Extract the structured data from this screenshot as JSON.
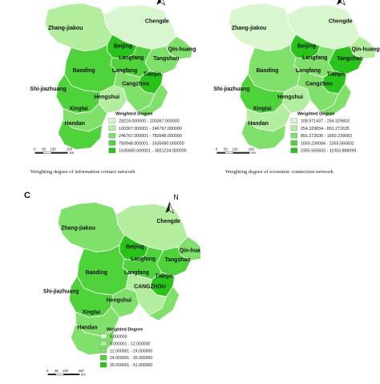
{
  "panels": [
    {
      "id": "a",
      "letter": "",
      "caption": "Weighting degree of information contact network",
      "city_labels": {
        "chengde": "Chengde",
        "zhangjiakou": "Zhang-jiakou",
        "beijing": "Beijing",
        "qinhuangdao": "Qin-huangdao",
        "langfang_n": "Langfang",
        "tangshan": "Tangshan",
        "baoding": "Baoding",
        "langfang_s": "Langfang",
        "tianjin": "Tianjin",
        "cangzhou": "Cangzhou",
        "shijiazhuang": "Shi-jiazhuang",
        "hengshui": "Hengshui",
        "xingtai": "Xingtai",
        "handan": "Handan"
      },
      "legend": {
        "title": "Weighted Degree",
        "entries": [
          "28224.000000 - 100367.000000",
          "100367.000001 - 246767.000000",
          "246767.000001 - 783948.000000",
          "783948.000001 - 1635680.000000",
          "1635680.000001 - 3651234.000000"
        ],
        "colors": [
          "#d9f7cf",
          "#b3ee9f",
          "#7fe06a",
          "#4fd33a",
          "#29c41a"
        ]
      },
      "scale": {
        "ticks": [
          "0",
          "65",
          "130",
          "260"
        ],
        "unit": "km"
      },
      "city_class": {
        "chengde": 0,
        "zhangjiakou": 1,
        "beijing": 4,
        "qinhuangdao": 2,
        "langfang": 3,
        "tangshan": 2,
        "baoding": 3,
        "tianjin": 4,
        "cangzhou": 2,
        "shijiazhuang": 3,
        "hengshui": 1,
        "xingtai": 2,
        "handan": 3,
        "east_strip": 2
      }
    },
    {
      "id": "b",
      "letter": "",
      "caption": "Weighting degree of economic connection network",
      "city_labels": {
        "chengde": "Chengde",
        "zhangjiakou": "Zhang-jiakou",
        "beijing": "Beijing",
        "qinhuangdao": "Qin-huangdan",
        "langfang_n": "Langfang",
        "tangshan": "Tangshan",
        "baoding": "Baoding",
        "langfang_s": "Langfang",
        "tianjin": "Tianjin",
        "cangzhou": "Cangzhou",
        "shijiazhuang": "Shi-jiazhuang",
        "hengshui": "Hengshui",
        "xingtai": "Xingtai",
        "handan": "Handan"
      },
      "legend": {
        "title": "Weighted Degree",
        "entries": [
          "108.971437 - 254.329833",
          "254.329834 - 891.272635",
          "891.272636 - 1650.239083",
          "1650.239084 - 2355.565832",
          "2355.565833 - 11003.888099"
        ],
        "colors": [
          "#d9f7cf",
          "#b3ee9f",
          "#7fe06a",
          "#4fd33a",
          "#29c41a"
        ]
      },
      "scale": {
        "ticks": [
          "0",
          "65",
          "130",
          "260"
        ],
        "unit": "km"
      },
      "city_class": {
        "chengde": 0,
        "zhangjiakou": 0,
        "beijing": 4,
        "qinhuangdao": 1,
        "langfang": 2,
        "tangshan": 4,
        "baoding": 2,
        "tianjin": 4,
        "cangzhou": 2,
        "shijiazhuang": 3,
        "hengshui": 1,
        "xingtai": 1,
        "handan": 2,
        "east_strip": 2
      }
    },
    {
      "id": "c",
      "letter": "C",
      "caption": "",
      "city_labels": {
        "chengde": "Chengde",
        "zhangjiakou": "Zhang-jiakou",
        "beijing": "Beijing",
        "qinhuangdao": "Qin-huangdao",
        "langfang_n": "Langfang",
        "tangshan": "Tangshan",
        "baoding": "Baoding",
        "langfang_s": "Langfang",
        "tianjin": "Tianjin",
        "cangzhou": "CANGZHOU",
        "shijiazhuang": "Shi-jiazhuang",
        "hengshui": "Hengshui",
        "xingtai": "Xingtai",
        "handan": "Handan"
      },
      "legend": {
        "title": "Weighted Degree",
        "entries": [
          "6.000000",
          "6.000001 - 12.000000",
          "12.000001 - 24.000000",
          "24.000001 - 35.000000",
          "35.000001 - 51.000000"
        ],
        "colors": [
          "#d9f7cf",
          "#b3ee9f",
          "#7fe06a",
          "#4fd33a",
          "#29c41a"
        ]
      },
      "scale": {
        "ticks": [
          "0",
          "65",
          "130",
          "260"
        ],
        "unit": "km"
      },
      "north_label": "N",
      "city_class": {
        "chengde": 1,
        "zhangjiakou": 2,
        "beijing": 4,
        "qinhuangdao": 2,
        "langfang": 3,
        "tangshan": 3,
        "baoding": 3,
        "tianjin": 4,
        "cangzhou": 1,
        "shijiazhuang": 3,
        "hengshui": 2,
        "xingtai": 2,
        "handan": 2,
        "east_strip": 2
      }
    }
  ]
}
